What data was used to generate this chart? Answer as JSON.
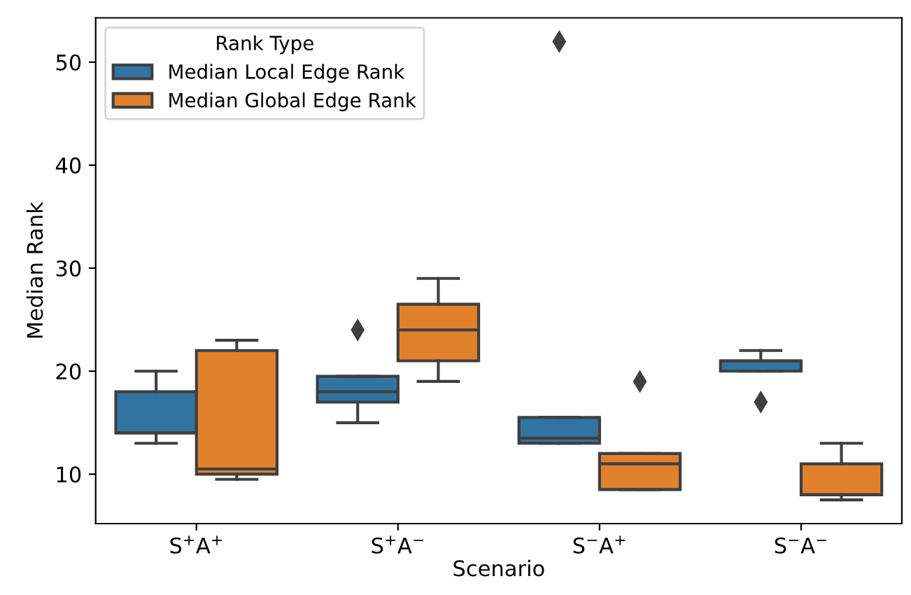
{
  "chart_data": {
    "type": "box",
    "xlabel": "Scenario",
    "ylabel": "Median Rank",
    "legend_title": "Rank Type",
    "legend": "top left",
    "grid": false,
    "categories": [
      "S$^{+}$A$^{+}$",
      "S$^{+}$A$^{−}$",
      "S$^{−}$A$^{+}$",
      "S$^{−}$A$^{−}$"
    ],
    "ylim": [
      5.2,
      54.3
    ],
    "yticks": [
      10,
      20,
      30,
      40,
      50
    ],
    "series": [
      {
        "name": "Median Local Edge Rank",
        "color": "#3274a1",
        "boxes": [
          {
            "low": 13,
            "q1": 14,
            "median": 14,
            "q3": 18,
            "high": 20
          },
          {
            "low": 15,
            "q1": 17,
            "median": 18,
            "q3": 19.5,
            "high": 19.5,
            "outliers": [
              24
            ]
          },
          {
            "low": 13,
            "q1": 13,
            "median": 13.5,
            "q3": 15.5,
            "high": 15.5,
            "outliers": [
              52
            ]
          },
          {
            "low": 20,
            "q1": 20,
            "median": 21,
            "q3": 21,
            "high": 22,
            "outliers": [
              17
            ]
          }
        ]
      },
      {
        "name": "Median Global Edge Rank",
        "color": "#e1812c",
        "boxes": [
          {
            "low": 9.5,
            "q1": 10,
            "median": 10.5,
            "q3": 22,
            "high": 23
          },
          {
            "low": 19,
            "q1": 21,
            "median": 24,
            "q3": 26.5,
            "high": 29
          },
          {
            "low": 8.5,
            "q1": 8.5,
            "median": 11,
            "q3": 12,
            "high": 12,
            "outliers": [
              19
            ]
          },
          {
            "low": 7.5,
            "q1": 8,
            "median": 8,
            "q3": 11,
            "high": 13
          }
        ]
      }
    ]
  }
}
